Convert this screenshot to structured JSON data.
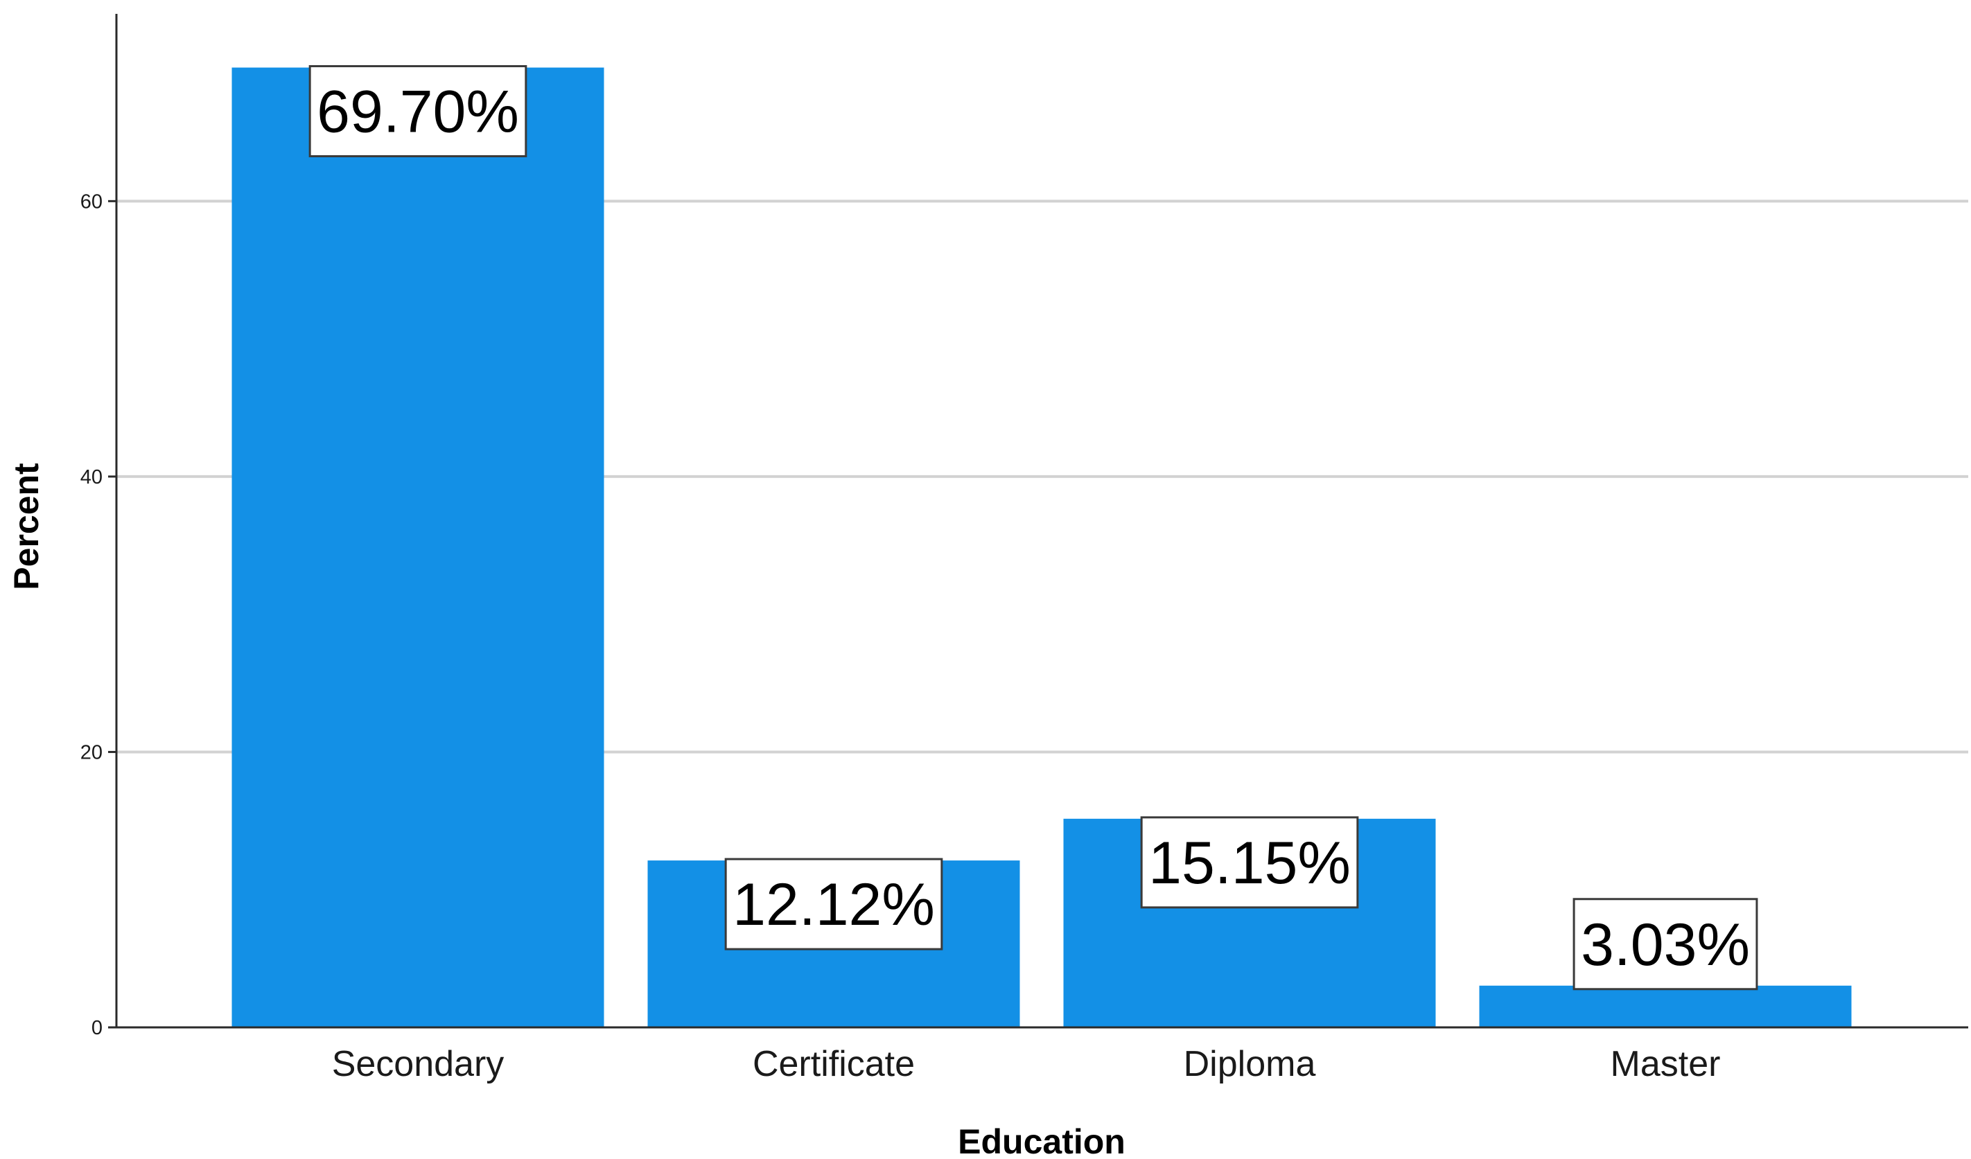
{
  "chart_data": {
    "type": "bar",
    "title": "",
    "xlabel": "Education",
    "ylabel": "Percent",
    "categories": [
      "Secondary",
      "Certificate",
      "Diploma",
      "Master"
    ],
    "values": [
      69.7,
      12.12,
      15.15,
      3.03
    ],
    "data_labels": [
      "69.70%",
      "12.12%",
      "15.15%",
      "3.03%"
    ],
    "yticks": [
      0,
      20,
      40,
      60
    ],
    "ylim": [
      0,
      73.6
    ],
    "grid": true,
    "legend": "none",
    "colors": {
      "bar": "#1390e6",
      "grid": "#d2d2d2",
      "axis": "#2a2a2a",
      "label_border": "#3a3a3a",
      "label_fill": "#ffffff"
    }
  }
}
